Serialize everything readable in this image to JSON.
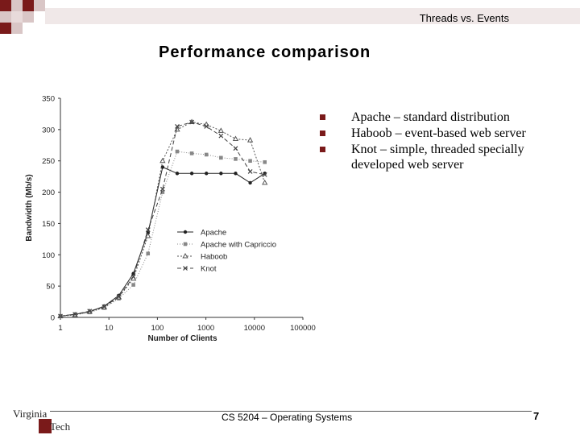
{
  "header": {
    "course_title": "Threads vs. Events",
    "slide_title": "Performance comparison"
  },
  "bullets": [
    "Apache – standard distribution",
    "Haboob – event-based web server",
    "Knot – simple, threaded specially developed web server"
  ],
  "footer": {
    "text": "CS 5204 – Operating Systems",
    "page": "7",
    "logo_text": "Virginia Tech"
  },
  "colors": {
    "accent": "#7a1a1a",
    "deco_light": "#d9c6c6"
  },
  "chart_data": {
    "type": "line",
    "title": "",
    "xlabel": "Number of Clients",
    "ylabel": "Bandwidth (Mb/s)",
    "x_scale": "log",
    "xlim": [
      1,
      100000
    ],
    "ylim": [
      0,
      350
    ],
    "x_ticks": [
      "1",
      "10",
      "100",
      "1000",
      "10000",
      "100000"
    ],
    "y_ticks": [
      "0",
      "50",
      "100",
      "150",
      "200",
      "250",
      "300",
      "350"
    ],
    "legend_position": "center",
    "series": [
      {
        "name": "Apache",
        "marker": "circle",
        "color": "#222222",
        "dash": "",
        "x": [
          1,
          2,
          4,
          8,
          16,
          32,
          64,
          128,
          256,
          512,
          1024,
          2048,
          4096,
          8192,
          16384
        ],
        "y": [
          2,
          5,
          9,
          18,
          35,
          70,
          135,
          240,
          230,
          230,
          230,
          230,
          230,
          215,
          230
        ]
      },
      {
        "name": "Apache with Capriccio",
        "marker": "square",
        "color": "#888888",
        "dash": "1 2",
        "x": [
          1,
          2,
          4,
          8,
          16,
          32,
          64,
          128,
          256,
          512,
          1024,
          2048,
          4096,
          8192,
          16384
        ],
        "y": [
          2,
          4,
          8,
          15,
          30,
          52,
          102,
          200,
          265,
          262,
          260,
          255,
          253,
          250,
          248
        ]
      },
      {
        "name": "Haboob",
        "marker": "triangle",
        "color": "#555555",
        "dash": "2 2",
        "x": [
          1,
          2,
          4,
          8,
          16,
          32,
          64,
          128,
          256,
          512,
          1024,
          2048,
          4096,
          8192,
          16384
        ],
        "y": [
          2,
          4,
          9,
          16,
          32,
          62,
          130,
          250,
          300,
          312,
          308,
          298,
          285,
          283,
          215
        ]
      },
      {
        "name": "Knot",
        "marker": "x",
        "color": "#444444",
        "dash": "5 3",
        "x": [
          1,
          2,
          4,
          8,
          16,
          32,
          64,
          128,
          256,
          512,
          1024,
          2048,
          4096,
          8192,
          16384
        ],
        "y": [
          2,
          5,
          10,
          17,
          33,
          65,
          140,
          205,
          305,
          312,
          305,
          290,
          270,
          233,
          228
        ]
      }
    ]
  }
}
